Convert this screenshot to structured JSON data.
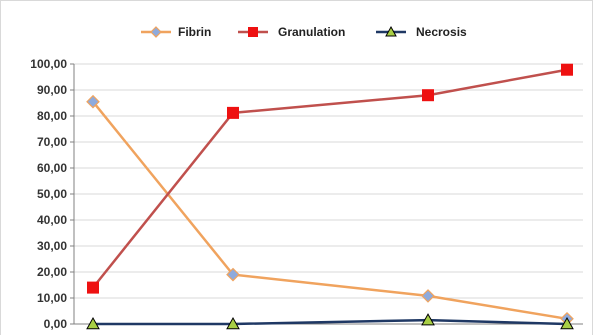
{
  "chart_data": {
    "type": "line",
    "categories": [
      "",
      "",
      "",
      ""
    ],
    "series": [
      {
        "name": "Fibrin",
        "values": [
          85.5,
          19.0,
          10.8,
          2.0
        ],
        "color": "#f0a35e",
        "marker": "diamond",
        "marker_fill": "#8eaadc",
        "marker_stroke": "#f0a35e"
      },
      {
        "name": "Granulation",
        "values": [
          14.0,
          81.2,
          88.0,
          97.8
        ],
        "color": "#c0504d",
        "marker": "square",
        "marker_fill": "#ee1111",
        "marker_stroke": "#ee1111"
      },
      {
        "name": "Necrosis",
        "values": [
          0.0,
          0.0,
          1.5,
          0.0
        ],
        "color": "#1f3864",
        "marker": "triangle",
        "marker_fill": "#a8cf45",
        "marker_stroke": "#000000"
      }
    ],
    "y_ticks": [
      "0,00",
      "10,00",
      "20,00",
      "30,00",
      "40,00",
      "50,00",
      "60,00",
      "70,00",
      "80,00",
      "90,00",
      "100,00"
    ],
    "ylim": [
      0,
      100
    ],
    "grid": true,
    "legend_position": "top",
    "title": "",
    "xlabel": "",
    "ylabel": ""
  }
}
